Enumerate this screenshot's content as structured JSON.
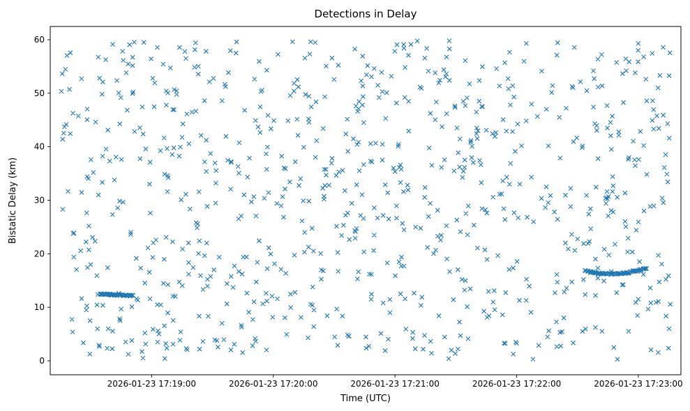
{
  "chart_data": {
    "type": "scatter",
    "title": "Detections in Delay",
    "xlabel": "Time (UTC)",
    "ylabel": "Bistatic Delay (km)",
    "marker": "x",
    "marker_color": "#1f77b4",
    "grid": false,
    "legend": null,
    "ylim": [
      0,
      60
    ],
    "y_ticks": [
      0,
      10,
      20,
      30,
      40,
      50,
      60
    ],
    "x_domain_seconds": [
      0,
      311
    ],
    "x_ticks": [
      {
        "t": 50,
        "label": "2026-01-23 17:19:00"
      },
      {
        "t": 110,
        "label": "2026-01-23 17:20:00"
      },
      {
        "t": 170,
        "label": "2026-01-23 17:21:00"
      },
      {
        "t": 230,
        "label": "2026-01-23 17:22:00"
      },
      {
        "t": 290,
        "label": "2026-01-23 17:23:00"
      }
    ],
    "background_points": {
      "description": "uniform random clutter detections filling the axes",
      "count": 880,
      "seed": 42,
      "t_range": [
        5,
        307
      ],
      "y_range": [
        0.3,
        59.8
      ]
    },
    "tracks": [
      {
        "name": "low-delay-target-track",
        "description": "dense slowly-descending track near 12 km early in the window",
        "count": 55,
        "seed": 7,
        "t_range": [
          24,
          41
        ],
        "poly": [
          12.5,
          -0.4,
          0.05
        ],
        "jitter": 0.1,
        "t_jitter": 0.5
      },
      {
        "name": "right-delay-target-track",
        "description": "dense shallow-U track near 16-17 km late in the window",
        "count": 75,
        "seed": 9,
        "t_range": [
          264,
          294
        ],
        "poly": [
          16.8,
          -2.625,
          3.125
        ],
        "jitter": 0.12,
        "t_jitter": 0.5
      }
    ]
  }
}
